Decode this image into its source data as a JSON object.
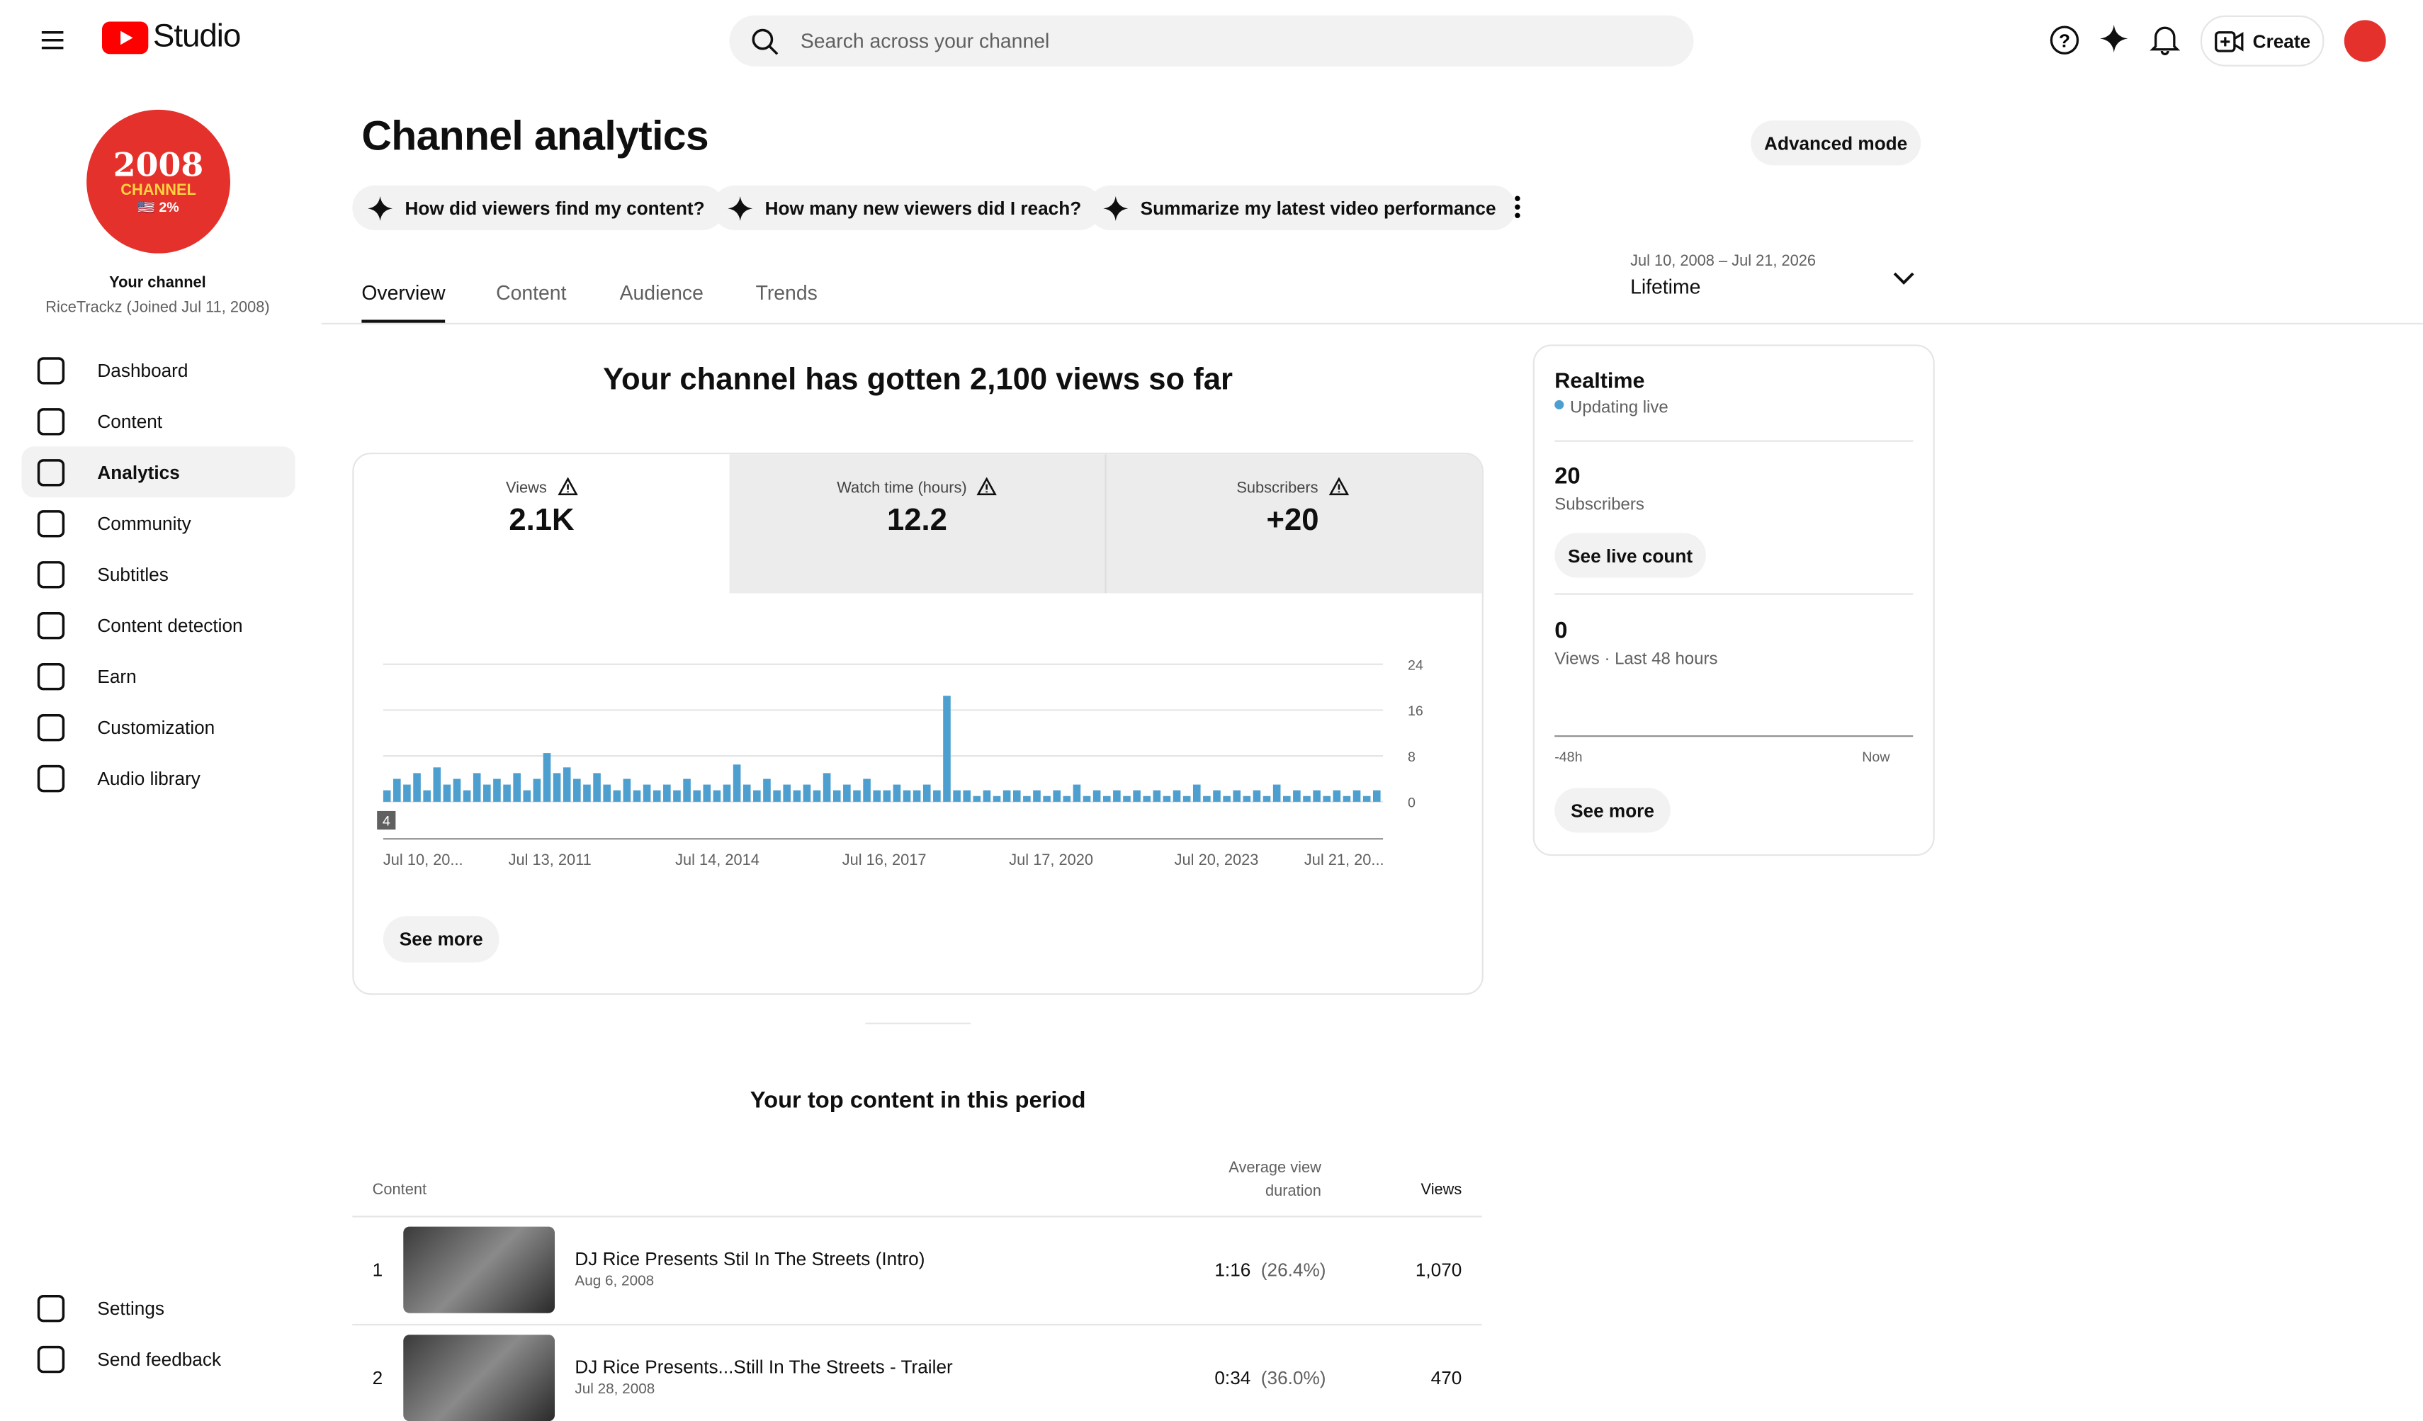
{
  "header": {
    "logo": "Studio",
    "search_placeholder": "Search across your channel",
    "create": "Create"
  },
  "sidebar": {
    "avatar": [
      "2008",
      "CHANNEL",
      "🇺🇸 2%"
    ],
    "channel_label": "Your channel",
    "channel_name": "RiceTrackz (Joined Jul 11, 2008)",
    "nav": [
      "Dashboard",
      "Content",
      "Analytics",
      "Community",
      "Subtitles",
      "Content detection",
      "Earn",
      "Customization",
      "Audio library"
    ],
    "bottom": [
      "Settings",
      "Send feedback"
    ]
  },
  "main": {
    "title": "Channel analytics",
    "advanced": "Advanced mode",
    "prompts": [
      "How did viewers find my content?",
      "How many new viewers did I reach?",
      "Summarize my latest video performance"
    ],
    "tabs": [
      "Overview",
      "Content",
      "Audience",
      "Trends"
    ],
    "date_range": "Jul 10, 2008 – Jul 21, 2026",
    "period": "Lifetime",
    "headline": "Your channel has gotten 2,100 views so far",
    "metrics": [
      {
        "label": "Views",
        "value": "2.1K"
      },
      {
        "label": "Watch time (hours)",
        "value": "12.2"
      },
      {
        "label": "Subscribers",
        "value": "+20"
      }
    ],
    "see_more": "See more",
    "top_title": "Your top content in this period",
    "table": {
      "headers": [
        "Content",
        "Average view duration",
        "Views"
      ],
      "rows": [
        {
          "rank": "1",
          "title": "DJ Rice Presents Stil In The Streets (Intro)",
          "date": "Aug 6, 2008",
          "duration": "1:16",
          "percent": "(26.4%)",
          "views": "1,070"
        },
        {
          "rank": "2",
          "title": "DJ Rice Presents...Still In The Streets - Trailer",
          "date": "Jul 28, 2008",
          "duration": "0:34",
          "percent": "(36.0%)",
          "views": "470"
        }
      ]
    }
  },
  "chart_data": {
    "type": "bar",
    "color": "#4d9fd0",
    "ylim": [
      0,
      24
    ],
    "yticks": [
      0,
      8,
      16,
      24
    ],
    "grid": true,
    "xtick_labels": [
      "Jul 10, 20...",
      "Jul 13, 2011",
      "Jul 14, 2014",
      "Jul 16, 2017",
      "Jul 17, 2020",
      "Jul 20, 2023",
      "Jul 21, 20..."
    ],
    "marker_label": "4",
    "values": [
      2,
      4,
      3,
      5,
      2,
      6,
      3,
      4,
      2,
      5,
      3,
      4,
      3,
      5,
      2,
      4,
      8.5,
      5,
      6,
      4,
      3,
      5,
      3,
      2,
      4,
      2,
      3,
      2,
      3,
      2,
      4,
      2,
      3,
      2,
      3,
      6.5,
      3,
      2,
      4,
      2,
      3,
      2,
      3,
      2,
      5,
      2,
      3,
      2,
      4,
      2,
      2,
      3,
      2,
      2,
      3,
      2,
      18.5,
      2,
      2,
      1,
      2,
      1,
      2,
      2,
      1,
      2,
      1,
      2,
      1,
      3,
      1,
      2,
      1,
      2,
      1,
      2,
      1,
      2,
      1,
      2,
      1,
      3,
      1,
      2,
      1,
      2,
      1,
      2,
      1,
      3,
      1,
      2,
      1,
      2,
      1,
      2,
      1,
      2,
      1,
      2
    ]
  },
  "realtime": {
    "title": "Realtime",
    "status": "Updating live",
    "subs": "20",
    "subs_label": "Subscribers",
    "live_count": "See live count",
    "views": "0",
    "views_label": "Views · Last 48 hours",
    "from": "-48h",
    "to": "Now",
    "see_more": "See more"
  }
}
